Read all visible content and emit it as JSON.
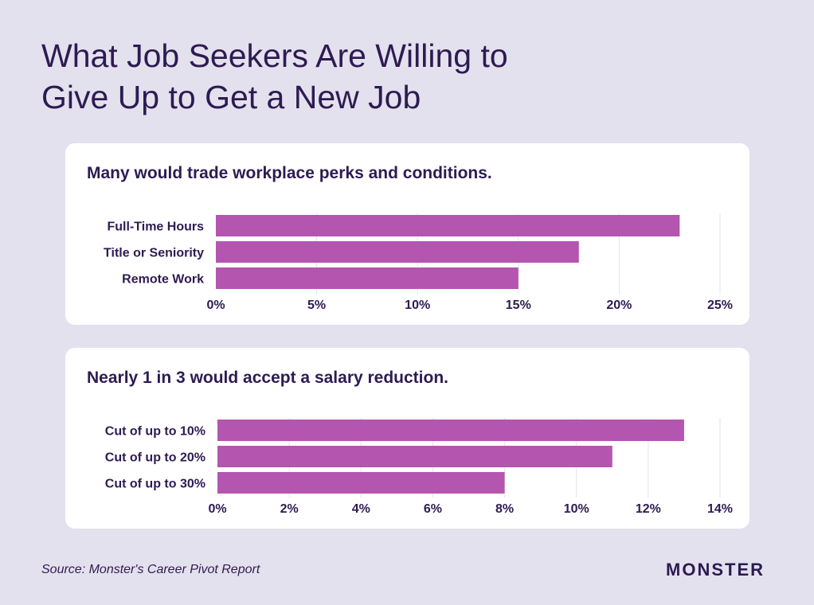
{
  "title_line1": "What Job Seekers Are Willing to",
  "title_line2": "Give Up to Get a New Job",
  "source": "Source: Monster's Career Pivot Report",
  "logo": "MONSTER",
  "colors": {
    "background": "#e4e1ee",
    "bar": "#b455b0",
    "text": "#2d1b52",
    "card": "#ffffff"
  },
  "chart_data": [
    {
      "type": "bar",
      "orientation": "horizontal",
      "title": "Many would trade workplace perks and conditions.",
      "categories": [
        "Full-Time Hours",
        "Title or Seniority",
        "Remote Work"
      ],
      "values": [
        23,
        18,
        15
      ],
      "unit": "%",
      "xlim": [
        0,
        25
      ],
      "ticks": [
        "0%",
        "5%",
        "10%",
        "15%",
        "20%",
        "25%"
      ],
      "grid": true
    },
    {
      "type": "bar",
      "orientation": "horizontal",
      "title": "Nearly 1 in 3 would accept a salary reduction.",
      "categories": [
        "Cut of up to 10%",
        "Cut of up to 20%",
        "Cut of up to 30%"
      ],
      "values": [
        13,
        11,
        8
      ],
      "unit": "%",
      "xlim": [
        0,
        14
      ],
      "ticks": [
        "0%",
        "2%",
        "4%",
        "6%",
        "8%",
        "10%",
        "12%",
        "14%"
      ],
      "grid": true
    }
  ]
}
